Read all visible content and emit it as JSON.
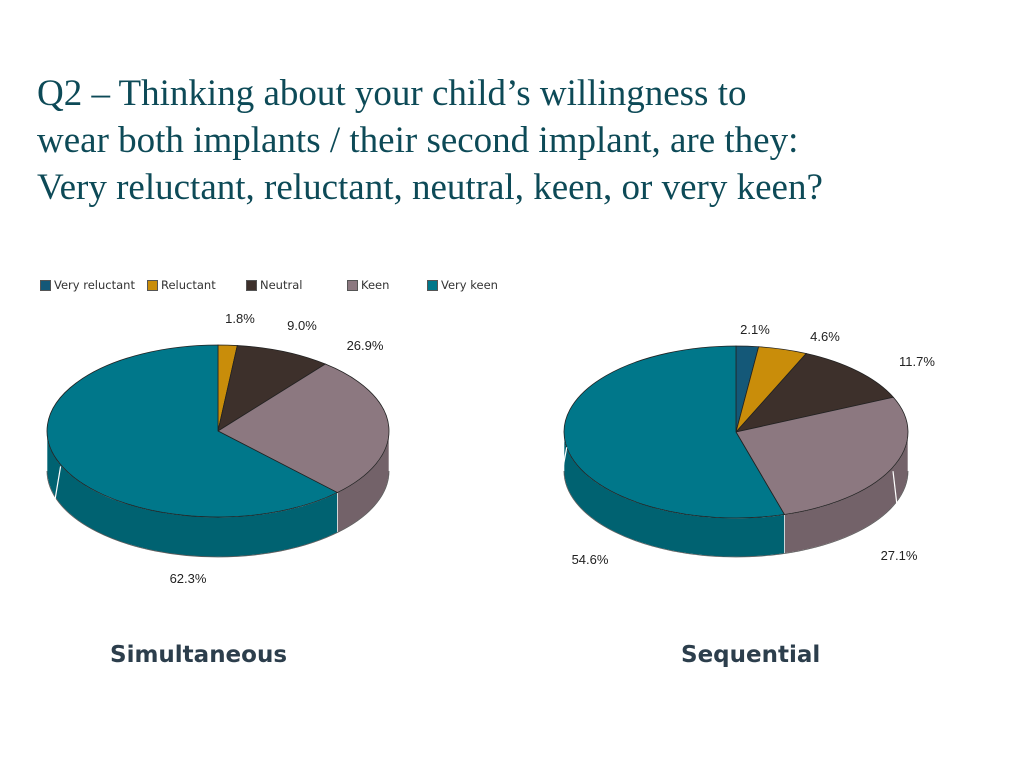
{
  "slide": {
    "title_lines": [
      "Q2 – Thinking about your child’s willingness to",
      "wear both implants / their second implant, are they:",
      "Very reluctant, reluctant, neutral, keen, or very keen?"
    ]
  },
  "legend": [
    {
      "label": "Very reluctant",
      "color": "#145878"
    },
    {
      "label": "Reluctant",
      "color": "#c98d0a"
    },
    {
      "label": "Neutral",
      "color": "#3d302b"
    },
    {
      "label": "Keen",
      "color": "#8c7880"
    },
    {
      "label": "Very keen",
      "color": "#00778a"
    }
  ],
  "chart_data": [
    {
      "type": "pie",
      "title": "Simultaneous",
      "categories": [
        "Very reluctant",
        "Reluctant",
        "Neutral",
        "Keen",
        "Very keen"
      ],
      "values": [
        0,
        1.8,
        9.0,
        26.9,
        62.3
      ],
      "labels": [
        "",
        "1.8%",
        "9.0%",
        "26.9%",
        "62.3%"
      ],
      "legend_position": "top-left"
    },
    {
      "type": "pie",
      "title": "Sequential",
      "categories": [
        "Very reluctant",
        "Reluctant",
        "Neutral",
        "Keen",
        "Very keen"
      ],
      "values": [
        2.1,
        4.6,
        11.7,
        27.1,
        54.6
      ],
      "labels": [
        "2.1%",
        "4.6%",
        "11.7%",
        "27.1%",
        "54.6%"
      ],
      "legend_position": "top-left"
    }
  ]
}
